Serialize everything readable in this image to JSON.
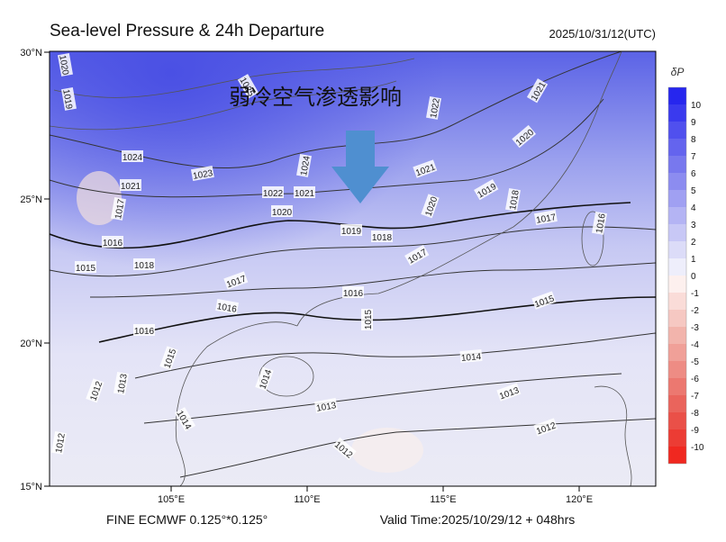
{
  "header": {
    "title": "Sea-level Pressure & 24h Departure",
    "time": "2025/10/31/12(UTC)"
  },
  "map": {
    "annotation": "弱冷空气渗透影响",
    "xticks": [
      "105°E",
      "110°E",
      "115°E",
      "120°E"
    ],
    "yticks": [
      "30°N",
      "25°N",
      "20°N",
      "15°N"
    ],
    "contour_labels": [
      "1020",
      "1019",
      "1024",
      "1023",
      "1022",
      "1021",
      "1020",
      "1019",
      "1018",
      "1021",
      "1020",
      "1022",
      "1021",
      "1020",
      "1019",
      "1018",
      "1017",
      "1016",
      "1017",
      "1016",
      "1015",
      "1015",
      "1014",
      "1013",
      "1013",
      "1012",
      "1012",
      "1014",
      "1015",
      "1016",
      "1017",
      "1018",
      "1015",
      "1016",
      "1017",
      "1021",
      "1024",
      "1014",
      "1013",
      "1012",
      "1012",
      "1016",
      "1025"
    ]
  },
  "colorbar": {
    "title": "δP",
    "labels": [
      10,
      9,
      8,
      7,
      6,
      5,
      4,
      3,
      2,
      1,
      0,
      -1,
      -2,
      -3,
      -4,
      -5,
      -6,
      -7,
      -8,
      -9,
      -10
    ],
    "colors": [
      "#2626ee",
      "#3a3aee",
      "#5050ee",
      "#6464ee",
      "#7878ee",
      "#8c8cf0",
      "#a0a0f2",
      "#b4b4f4",
      "#c8c8f6",
      "#dcdcf8",
      "#eeeefb",
      "#fdf0ee",
      "#fadcd8",
      "#f6c8c2",
      "#f2b4ac",
      "#f0a098",
      "#ee8c84",
      "#ec7870",
      "#ea645c",
      "#ea5048",
      "#ec3c34",
      "#f02820"
    ]
  },
  "footer": {
    "left": "FINE ECMWF 0.125°*0.125°",
    "right": "Valid Time:2025/10/29/12 + 048hrs"
  }
}
